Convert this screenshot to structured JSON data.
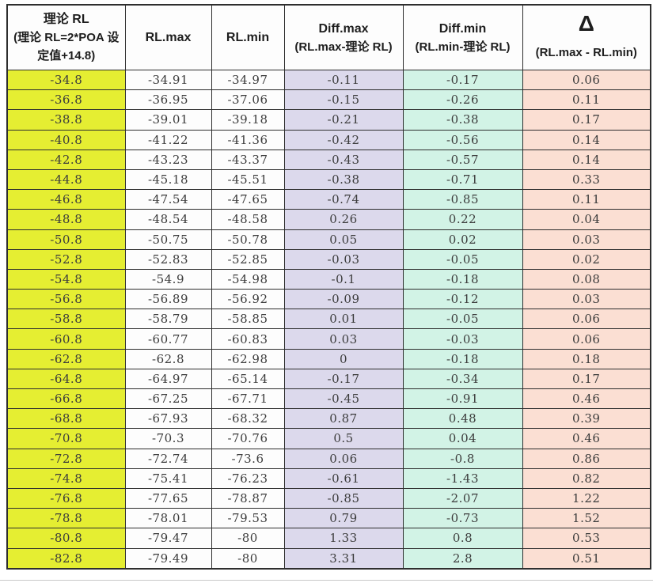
{
  "colors": {
    "border": "#2e2e2e",
    "text": "#3c3c3c",
    "header-bg": "#fdfdfd",
    "col-theory": "#e5ee32",
    "col-plain": "#fdfdfd",
    "col-diffmax": "#dcd9ec",
    "col-diffmin": "#d2f3e6",
    "col-delta": "#fbdfd3"
  },
  "chart_data": {
    "type": "table",
    "columns": [
      {
        "id": "theory_rl",
        "label": "理论 RL",
        "sublabel": "(理论 RL=2*POA 设定值+14.8)"
      },
      {
        "id": "rl_max",
        "label": "RL.max",
        "sublabel": ""
      },
      {
        "id": "rl_min",
        "label": "RL.min",
        "sublabel": ""
      },
      {
        "id": "diff_max",
        "label": "Diff.max",
        "sublabel": "(RL.max-理论 RL)"
      },
      {
        "id": "diff_min",
        "label": "Diff.min",
        "sublabel": "(RL.min-理论 RL)"
      },
      {
        "id": "delta",
        "label": "Δ",
        "sublabel": "(RL.max - RL.min)"
      }
    ],
    "rows": [
      [
        "-34.8",
        "-34.91",
        "-34.97",
        "-0.11",
        "-0.17",
        "0.06"
      ],
      [
        "-36.8",
        "-36.95",
        "-37.06",
        "-0.15",
        "-0.26",
        "0.11"
      ],
      [
        "-38.8",
        "-39.01",
        "-39.18",
        "-0.21",
        "-0.38",
        "0.17"
      ],
      [
        "-40.8",
        "-41.22",
        "-41.36",
        "-0.42",
        "-0.56",
        "0.14"
      ],
      [
        "-42.8",
        "-43.23",
        "-43.37",
        "-0.43",
        "-0.57",
        "0.14"
      ],
      [
        "-44.8",
        "-45.18",
        "-45.51",
        "-0.38",
        "-0.71",
        "0.33"
      ],
      [
        "-46.8",
        "-47.54",
        "-47.65",
        "-0.74",
        "-0.85",
        "0.11"
      ],
      [
        "-48.8",
        "-48.54",
        "-48.58",
        "0.26",
        "0.22",
        "0.04"
      ],
      [
        "-50.8",
        "-50.75",
        "-50.78",
        "0.05",
        "0.02",
        "0.03"
      ],
      [
        "-52.8",
        "-52.83",
        "-52.85",
        "-0.03",
        "-0.05",
        "0.02"
      ],
      [
        "-54.8",
        "-54.9",
        "-54.98",
        "-0.1",
        "-0.18",
        "0.08"
      ],
      [
        "-56.8",
        "-56.89",
        "-56.92",
        "-0.09",
        "-0.12",
        "0.03"
      ],
      [
        "-58.8",
        "-58.79",
        "-58.85",
        "0.01",
        "-0.05",
        "0.06"
      ],
      [
        "-60.8",
        "-60.77",
        "-60.83",
        "0.03",
        "-0.03",
        "0.06"
      ],
      [
        "-62.8",
        "-62.8",
        "-62.98",
        "0",
        "-0.18",
        "0.18"
      ],
      [
        "-64.8",
        "-64.97",
        "-65.14",
        "-0.17",
        "-0.34",
        "0.17"
      ],
      [
        "-66.8",
        "-67.25",
        "-67.71",
        "-0.45",
        "-0.91",
        "0.46"
      ],
      [
        "-68.8",
        "-67.93",
        "-68.32",
        "0.87",
        "0.48",
        "0.39"
      ],
      [
        "-70.8",
        "-70.3",
        "-70.76",
        "0.5",
        "0.04",
        "0.46"
      ],
      [
        "-72.8",
        "-72.74",
        "-73.6",
        "0.06",
        "-0.8",
        "0.86"
      ],
      [
        "-74.8",
        "-75.41",
        "-76.23",
        "-0.61",
        "-1.43",
        "0.82"
      ],
      [
        "-76.8",
        "-77.65",
        "-78.87",
        "-0.85",
        "-2.07",
        "1.22"
      ],
      [
        "-78.8",
        "-78.01",
        "-79.53",
        "0.79",
        "-0.73",
        "1.52"
      ],
      [
        "-80.8",
        "-79.47",
        "-80",
        "1.33",
        "0.8",
        "0.53"
      ],
      [
        "-82.8",
        "-79.49",
        "-80",
        "3.31",
        "2.8",
        "0.51"
      ]
    ]
  }
}
